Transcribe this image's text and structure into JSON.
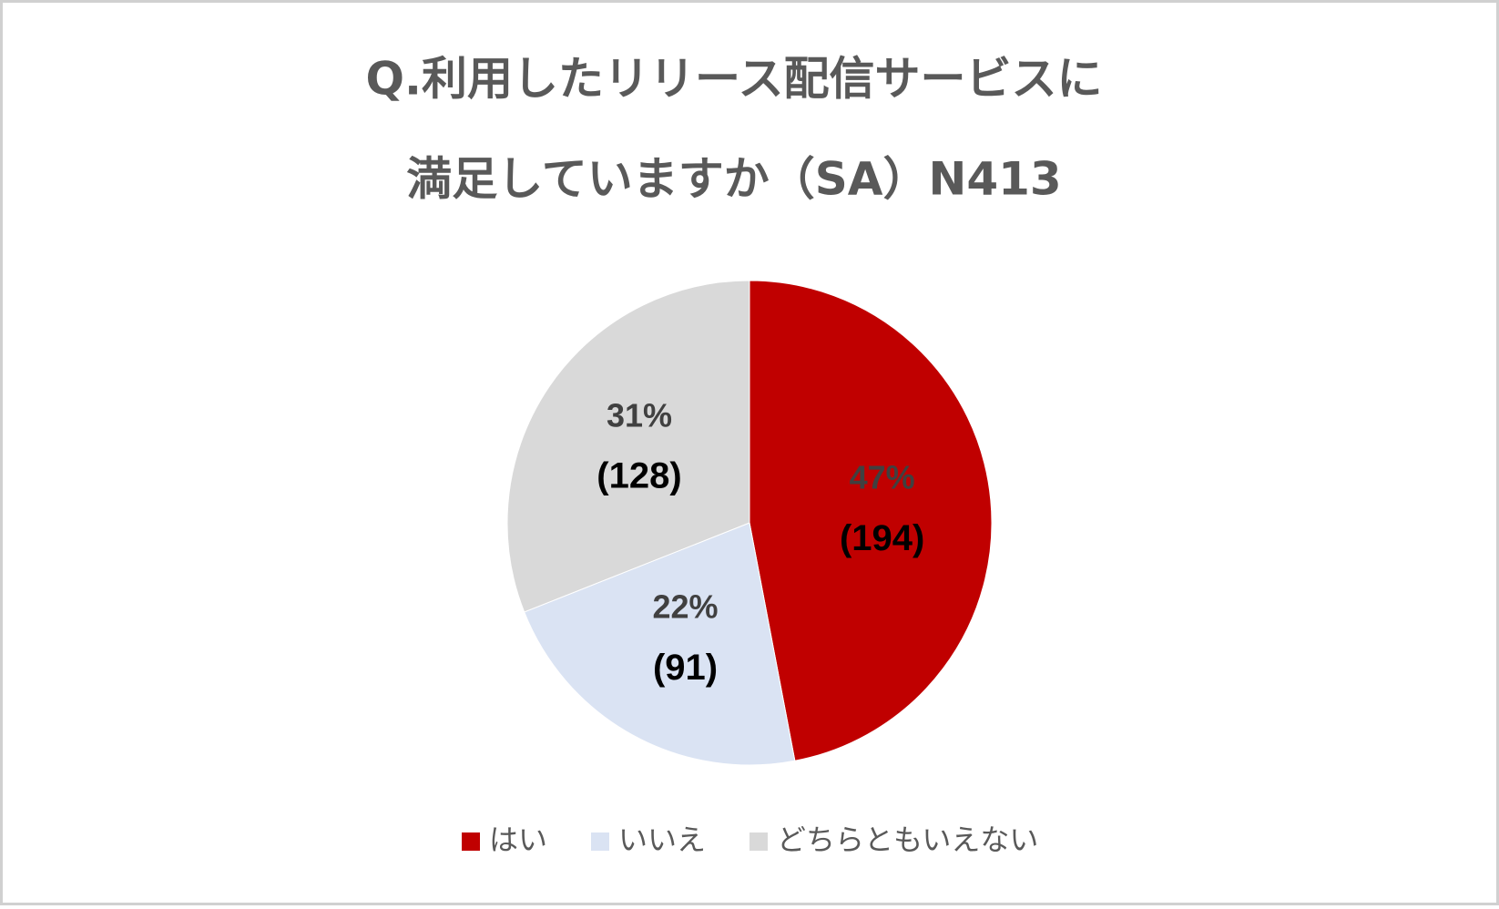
{
  "chart_data": {
    "type": "pie",
    "title": [
      "Q.利用したリリース配信サービスに",
      "満足していますか（SA）N413"
    ],
    "categories": [
      "はい",
      "いいえ",
      "どちらともいえない"
    ],
    "values": [
      47,
      22,
      31
    ],
    "value_labels": [
      "47%",
      "22%",
      "31%"
    ],
    "counts": [
      194,
      91,
      128
    ],
    "count_labels": [
      "(194)",
      "(91)",
      "(128)"
    ],
    "colors": [
      "#c00000",
      "#dae3f3",
      "#d9d9d9"
    ],
    "legend": "bottom"
  }
}
